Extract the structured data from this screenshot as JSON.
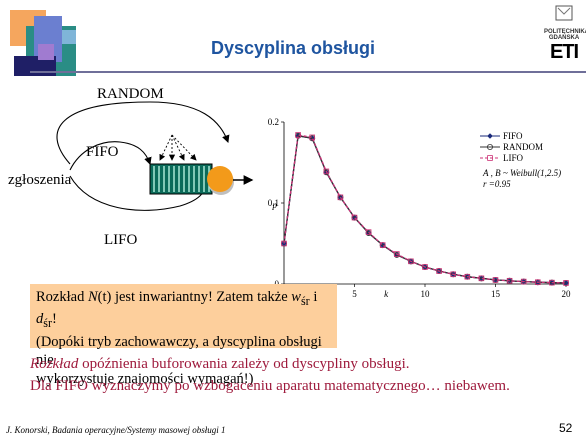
{
  "slide": {
    "title": "Dyscyplina obsługi",
    "page_number": "52",
    "footer": "J. Konorski, Badania operacyjne/Systemy masowej obsługi 1",
    "logo": {
      "line1": "POLITECHNIKA",
      "line2": "GDAŃSKA",
      "mark": "ETI"
    }
  },
  "diagram": {
    "source_label": "zgłoszenia",
    "random_label": "RANDOM",
    "fifo_label": "FIFO",
    "lifo_label": "LIFO"
  },
  "note": {
    "line1_prefix": "Rozkład ",
    "line1_N": "N",
    "line1_t": "(t)",
    "line1_mid": " jest inwariantny! Zatem także ",
    "w": "w",
    "w_sub": "śr",
    "and": " i ",
    "d": "d",
    "d_sub": "śr",
    "line1_end": "!",
    "line2": "(Dopóki tryb zachowawczy, a dyscyplina obsługi nie",
    "line3": "wykorzystuje znajomości wymagań!)"
  },
  "statement": {
    "italic_word": "Rozkład",
    "rest1": " opóźnienia buforowania zależy od dyscypliny obsługi.",
    "line2": "Dla FIFO wyznaczymy po wzbogaceniu aparatu matematycznego… niebawem."
  },
  "colors": {
    "title": "#1f55a0",
    "fifo": "#1a2a7a",
    "random": "#333333",
    "lifo": "#cc3377",
    "note_bg": "#fdcf9c",
    "text_red": "#9e1a3c"
  },
  "chart_data": {
    "type": "line",
    "xlabel": "k",
    "ylabel": "p",
    "xlim": [
      0,
      20
    ],
    "ylim": [
      0,
      0.2
    ],
    "x_ticks": [
      "0",
      "5",
      "10",
      "15",
      "20"
    ],
    "y_ticks": [
      "0",
      "0.1",
      "0.2"
    ],
    "annotation1": "A , B ~ Weibull(1,2.5)",
    "annotation2": "r =0.95",
    "legend_position": "top-right",
    "x": [
      0,
      1,
      2,
      3,
      4,
      5,
      6,
      7,
      8,
      9,
      10,
      11,
      12,
      13,
      14,
      15,
      16,
      17,
      18,
      19,
      20
    ],
    "series": [
      {
        "name": "FIFO",
        "values": [
          0.05,
          0.183,
          0.18,
          0.138,
          0.107,
          0.082,
          0.063,
          0.048,
          0.036,
          0.028,
          0.021,
          0.016,
          0.012,
          0.009,
          0.007,
          0.005,
          0.004,
          0.003,
          0.0022,
          0.0017,
          0.0013
        ]
      },
      {
        "name": "RANDOM",
        "values": [
          0.05,
          0.183,
          0.18,
          0.138,
          0.107,
          0.082,
          0.063,
          0.048,
          0.036,
          0.028,
          0.021,
          0.016,
          0.012,
          0.009,
          0.007,
          0.005,
          0.004,
          0.003,
          0.0022,
          0.0017,
          0.0013
        ]
      },
      {
        "name": "LIFO",
        "values": [
          0.05,
          0.184,
          0.181,
          0.139,
          0.107,
          0.082,
          0.064,
          0.048,
          0.037,
          0.028,
          0.021,
          0.016,
          0.012,
          0.009,
          0.007,
          0.005,
          0.004,
          0.003,
          0.0022,
          0.0017,
          0.0013
        ]
      }
    ]
  }
}
